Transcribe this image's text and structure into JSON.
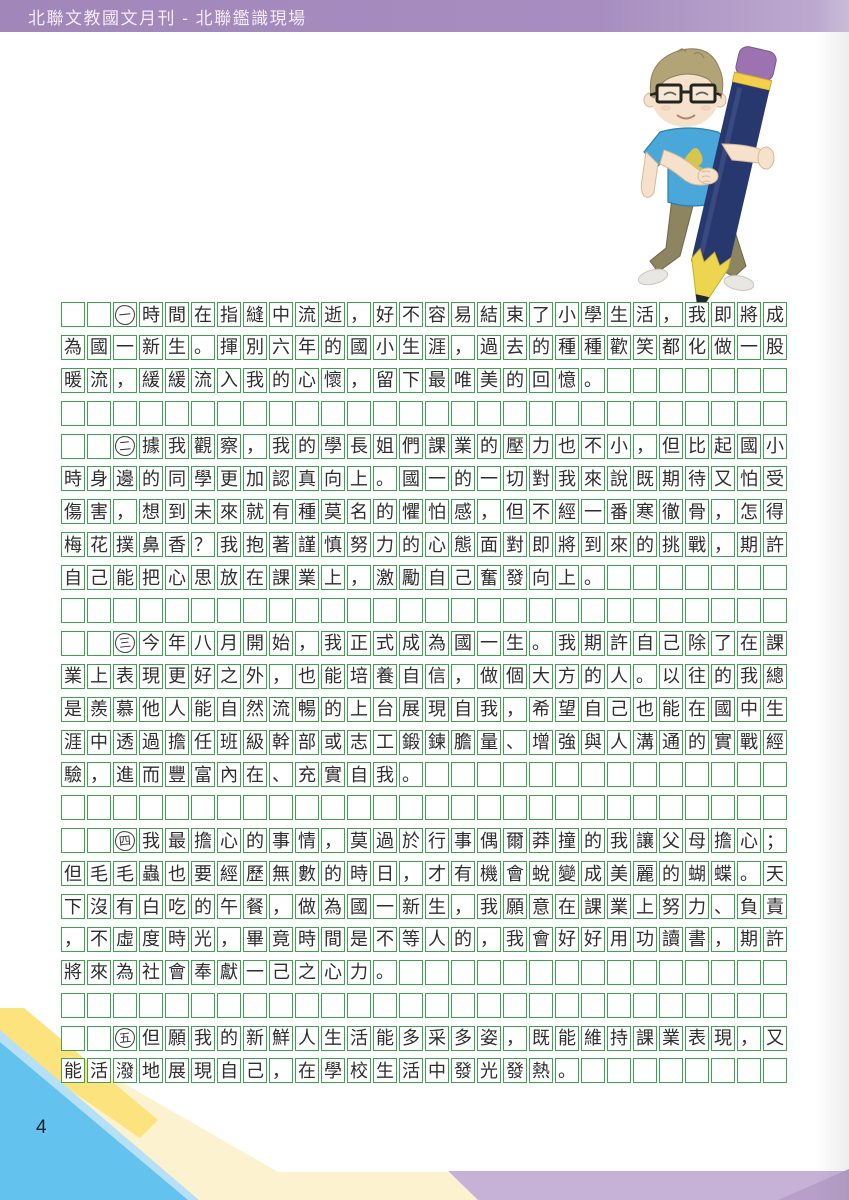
{
  "header": {
    "title": "北聯文教國文月刊 - 北聯鑑識現場",
    "bg_color": "#a78dc0",
    "text_color": "#f2edf6"
  },
  "page": {
    "number": "4"
  },
  "essay": {
    "grid": {
      "columns": 28,
      "indent_cells": 2,
      "line_color": "#3fa24f",
      "ink_color": "#2e2e2e"
    },
    "paragraphs": [
      {
        "marker": "一",
        "text": "時間在指縫中流逝，好不容易結束了小學生活，我即將成為國一新生。揮別六年的國小生涯，過去的種種歡笑都化做一股暖流，緩緩流入我的心懷，留下最唯美的回憶。"
      },
      {
        "marker": "二",
        "text": "據我觀察，我的學長姐們課業的壓力也不小，但比起國小時身邊的同學更加認真向上。國一的一切對我來說既期待又怕受傷害，想到未來就有種莫名的懼怕感，但不經一番寒徹骨，怎得梅花撲鼻香？我抱著謹慎努力的心態面對即將到來的挑戰，期許自己能把心思放在課業上，激勵自己奮發向上。"
      },
      {
        "marker": "三",
        "text": "今年八月開始，我正式成為國一生。我期許自己除了在課業上表現更好之外，也能培養自信，做個大方的人。以往的我總是羨慕他人能自然流暢的上台展現自我，希望自己也能在國中生涯中透過擔任班級幹部或志工鍛鍊膽量、增強與人溝通的實戰經驗，進而豐富內在、充實自我。"
      },
      {
        "marker": "四",
        "text": "我最擔心的事情，莫過於行事偶爾莽撞的我讓父母擔心；但毛毛蟲也要經歷無數的時日，才有機會蛻變成美麗的蝴蝶。天下沒有白吃的午餐，做為國一新生，我願意在課業上努力、負責，不虛度時光，畢竟時間是不等人的，我會好好用功讀書，期許將來為社會奉獻一己之心力。"
      },
      {
        "marker": "五",
        "text": "但願我的新鮮人生活能多采多姿，既能維持課業表現，又能活潑地展現自己，在學校生活中發光發熱。"
      }
    ]
  },
  "illustration": {
    "name": "boy-holding-giant-pencil",
    "pencil_body_color": "#27386e",
    "pencil_eraser_color": "#9c72b0",
    "pencil_band_color": "#f3cf4b",
    "pencil_wood_color": "#ecd64f",
    "shirt_color": "#4aa7da",
    "pants_color": "#8d8460",
    "hair_color": "#b3a478",
    "skin_color": "#f6e2cc"
  },
  "footer_decoration": {
    "yellow_band": "#fce37d",
    "cream_band": "#fdf2cf",
    "light_blue_stripe": "#b5e0f7",
    "blue_triangle": "#64c3ee",
    "purple_band": "#c7b2d7",
    "purple_dark_triangle": "#b79fc9"
  }
}
